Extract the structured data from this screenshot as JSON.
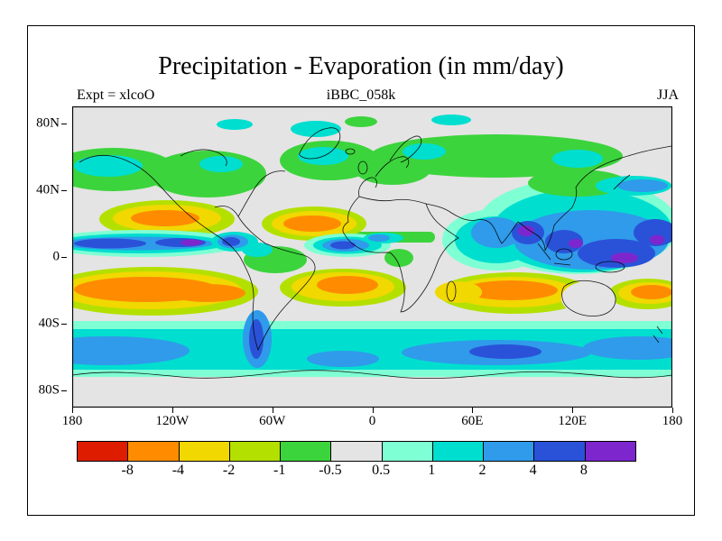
{
  "page": {
    "background": "#ffffff",
    "frame_color": "#000000"
  },
  "chart_data": {
    "type": "heatmap",
    "title": "Precipitation - Evaporation (in mm/day)",
    "annotations": {
      "top_left": "Expt = xlcoO",
      "top_center": "iBBC_058k",
      "top_right": "JJA"
    },
    "units": "mm/day",
    "projection": "global cylindrical lat-lon map, 180W to 180E, 90S to 90N",
    "x_ticks": [
      "180",
      "120W",
      "60W",
      "0",
      "60E",
      "120E",
      "180"
    ],
    "y_ticks": [
      "80N",
      "40N",
      "0",
      "40S",
      "80S"
    ],
    "xlim_deg_east": [
      -180,
      180
    ],
    "ylim_deg_north": [
      -90,
      90
    ],
    "grid": "off",
    "legend_position": "bottom horizontal colorbar",
    "colorbar": {
      "orientation": "horizontal",
      "boundaries": [
        "-8",
        "-4",
        "-2",
        "-1",
        "-0.5",
        "0.5",
        "1",
        "2",
        "4",
        "8"
      ],
      "colors": [
        "#dd1c00",
        "#ff8c00",
        "#f0d800",
        "#b4e000",
        "#3cd43c",
        "#e4e4e4",
        "#7fffd4",
        "#00ded0",
        "#2f9bea",
        "#2a52d8",
        "#7d26cd"
      ]
    },
    "notable_features": [
      "Strong positive P-E (2 to >8 mm/day, dark blue/purple) along the ITCZ of the tropical Pacific and Atlantic and over the Asian summer monsoon, Maritime Continent and west Pacific",
      "Strong negative P-E (-2 to -8 mm/day, yellow/orange) over subtropical South Pacific, South Atlantic, South Indian, North Atlantic and Northeast Pacific oceans",
      "Near-zero P-E (gray, -0.5 to 0.5 mm/day) over the Sahara, Australia, polar caps and continental interiors",
      "Weak positive band (cyan, 1-2 mm/day) over the Southern Ocean and northern mid-latitude storm tracks"
    ]
  }
}
